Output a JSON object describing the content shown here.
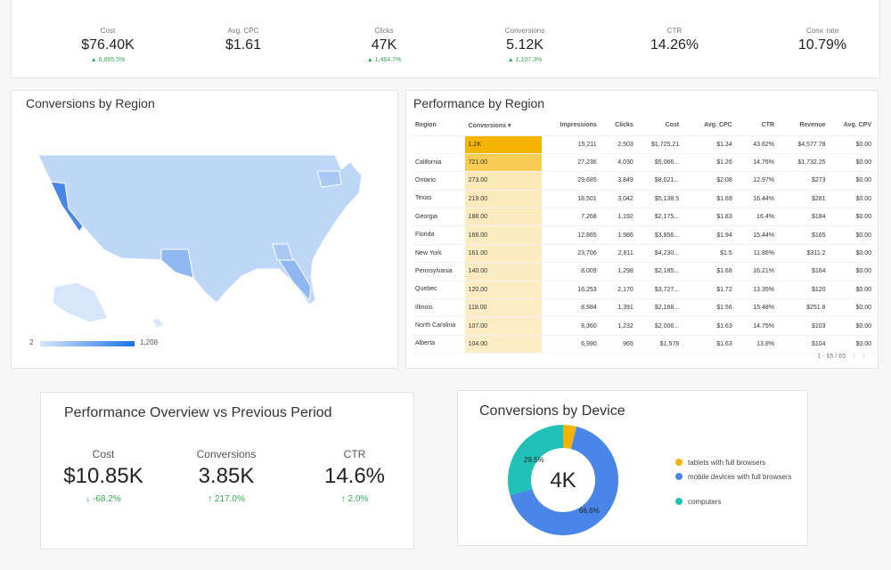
{
  "kpis": [
    {
      "label": "Cost",
      "value": "$76.40K",
      "delta": "▲ 6,865.5%"
    },
    {
      "label": "Avg. CPC",
      "value": "$1.61",
      "delta": ""
    },
    {
      "label": "Clicks",
      "value": "47K",
      "delta": "▲ 1,464.7%"
    },
    {
      "label": "Conversions",
      "value": "5.12K",
      "delta": "▲ 1,107.3%"
    },
    {
      "label": "CTR",
      "value": "14.26%",
      "delta": ""
    },
    {
      "label": "Conv. rate",
      "value": "10.79%",
      "delta": ""
    }
  ],
  "map_card": {
    "title": "Conversions by Region",
    "legend_min": "2",
    "legend_max": "1,208",
    "colors": {
      "low": "#d6e6fb",
      "high": "#1a73e8"
    }
  },
  "table_card": {
    "title": "Performance by Region",
    "columns": [
      "Region",
      "Conversions ▾",
      "Impressions",
      "Clicks",
      "Cost",
      "Avg. CPC",
      "CTR",
      "Revenue",
      "Avg. CPV"
    ],
    "rows": [
      {
        "region": "",
        "conversions": "1.2K",
        "impressions": "15,211",
        "clicks": "2,503",
        "cost": "$1,725.21",
        "cpc": "$1.34",
        "ctr": "43.62%",
        "revenue": "$4,577.78",
        "cpv": "$0.00",
        "heat": 1.0
      },
      {
        "region": "California",
        "conversions": "721.00",
        "impressions": "27,236",
        "clicks": "4,030",
        "cost": "$5,066...",
        "cpc": "$1.26",
        "ctr": "14.76%",
        "revenue": "$1,732.25",
        "cpv": "$0.00",
        "heat": 0.6
      },
      {
        "region": "Ontario",
        "conversions": "273.00",
        "impressions": "29,685",
        "clicks": "3,849",
        "cost": "$8,021...",
        "cpc": "$2.08",
        "ctr": "12.97%",
        "revenue": "$273",
        "cpv": "$0.00",
        "heat": 0.23
      },
      {
        "region": "Texas",
        "conversions": "219.00",
        "impressions": "18,501",
        "clicks": "3,042",
        "cost": "$5,138.5",
        "cpc": "$1.69",
        "ctr": "16.44%",
        "revenue": "$281",
        "cpv": "$0.00",
        "heat": 0.18
      },
      {
        "region": "Georgia",
        "conversions": "188.00",
        "impressions": "7,268",
        "clicks": "1,192",
        "cost": "$2,175...",
        "cpc": "$1.83",
        "ctr": "16.4%",
        "revenue": "$184",
        "cpv": "$0.00",
        "heat": 0.16
      },
      {
        "region": "Florida",
        "conversions": "166.00",
        "impressions": "12,865",
        "clicks": "1,986",
        "cost": "$3,856...",
        "cpc": "$1.94",
        "ctr": "15.44%",
        "revenue": "$165",
        "cpv": "$0.00",
        "heat": 0.14
      },
      {
        "region": "New York",
        "conversions": "161.00",
        "impressions": "23,706",
        "clicks": "2,811",
        "cost": "$4,230...",
        "cpc": "$1.5",
        "ctr": "11.86%",
        "revenue": "$311.2",
        "cpv": "$0.00",
        "heat": 0.13
      },
      {
        "region": "Pennsylvania",
        "conversions": "140.00",
        "impressions": "8,009",
        "clicks": "1,298",
        "cost": "$2,185...",
        "cpc": "$1.68",
        "ctr": "16.21%",
        "revenue": "$164",
        "cpv": "$0.00",
        "heat": 0.12
      },
      {
        "region": "Quebec",
        "conversions": "120.00",
        "impressions": "16,253",
        "clicks": "2,170",
        "cost": "$3,727...",
        "cpc": "$1.72",
        "ctr": "13.35%",
        "revenue": "$120",
        "cpv": "$0.00",
        "heat": 0.1
      },
      {
        "region": "Illinois",
        "conversions": "118.00",
        "impressions": "8,984",
        "clicks": "1,391",
        "cost": "$2,168...",
        "cpc": "$1.56",
        "ctr": "15.48%",
        "revenue": "$251.8",
        "cpv": "$0.00",
        "heat": 0.1
      },
      {
        "region": "North Carolina",
        "conversions": "107.00",
        "impressions": "8,360",
        "clicks": "1,232",
        "cost": "$2,006...",
        "cpc": "$1.63",
        "ctr": "14.75%",
        "revenue": "$103",
        "cpv": "$0.00",
        "heat": 0.09
      },
      {
        "region": "Alberta",
        "conversions": "104.00",
        "impressions": "6,990",
        "clicks": "965",
        "cost": "$1,578",
        "cpc": "$1.63",
        "ctr": "13.8%",
        "revenue": "$104",
        "cpv": "$0.00",
        "heat": 0.09
      }
    ],
    "pager_text": "1 - 65 / 65",
    "colors": {
      "heat": "#f4b400",
      "heat_light": "#fdf3d6"
    }
  },
  "overview_card": {
    "title": "Performance Overview vs Previous Period",
    "metrics": [
      {
        "label": "Cost",
        "value": "$10.85K",
        "delta": "↓ -68.2%"
      },
      {
        "label": "Conversions",
        "value": "3.85K",
        "delta": "↑ 217.0%"
      },
      {
        "label": "CTR",
        "value": "14.6%",
        "delta": "↑ 2.0%"
      }
    ]
  },
  "device_card": {
    "title": "Conversions by Device",
    "center_value": "4K",
    "slice_labels": [
      "29.5%",
      "66.6%"
    ],
    "legend": [
      {
        "label": "tablets with full browsers",
        "color": "#f4b400"
      },
      {
        "label": "mobile devices with full browsers",
        "color": "#4a86e8"
      },
      {
        "label": "computers",
        "color": "#22c1b8"
      }
    ]
  },
  "chart_data": {
    "type": "pie",
    "title": "Conversions by Device",
    "categories": [
      "tablets with full browsers",
      "mobile devices with full browsers",
      "computers"
    ],
    "values": [
      3.9,
      66.6,
      29.5
    ]
  }
}
